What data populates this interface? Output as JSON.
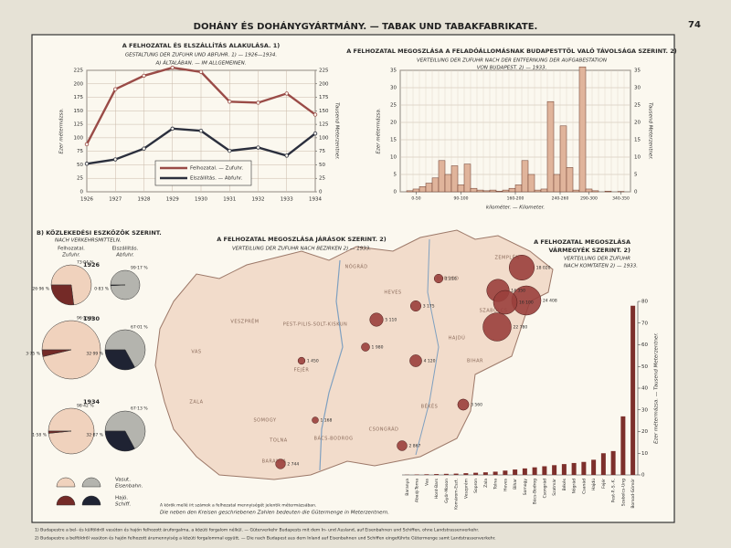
{
  "page": {
    "title": "DOHÁNY ÉS DOHÁNYGYÁRTMÁNY. — TABAK UND TABAKFABRIKATE.",
    "number": "74",
    "footnotes": [
      "1) Budapestre a bel- és külföldről vasúton és hajón felhozott áruforgalma, a közúti forgalom nélkül. — Güterverkehr Budapests mit dem In- und Ausland, auf Eisenbahnen und Schiffen, ohne Landstrassenverkehr.",
      "2) Budapestre a belföldről vasúton és hajón felhozott árumennyiség a közúti forgalommal együtt. — Die nach Budapest aus dem Inland auf Eisenbahnen und Schiffen eingeführte Gütermenge samt Landstrassenverkehr."
    ]
  },
  "chart_data": [
    {
      "type": "line",
      "title": "A FELHOZATAL ÉS ELSZÁLLÍTÁS ALAKULÁSA. 1)",
      "subtitle": "GESTALTUNG DER ZUFUHR UND ABFUHR. 1) — 1926—1934.",
      "subtitle2": "A) ÁLTALÁBAN. — IM ALLGEMEINEN.",
      "categories": [
        "1926",
        "1927",
        "1928",
        "1929",
        "1930",
        "1931",
        "1932",
        "1933",
        "1934"
      ],
      "ylabel": "Ezer métermázsa.",
      "y2label": "Tausend Meterzentner.",
      "ylim": [
        0,
        225
      ],
      "yticks": [
        0,
        25,
        50,
        75,
        100,
        125,
        150,
        175,
        200,
        225
      ],
      "y2lim": [
        0,
        225
      ],
      "y2ticks": [
        0,
        25,
        50,
        75,
        100,
        125,
        150,
        175,
        200,
        225
      ],
      "grid": true,
      "series": [
        {
          "name": "Felhozatal. — Zufuhr.",
          "color": "#9a4b47",
          "values": [
            88,
            190,
            215,
            230,
            222,
            167,
            165,
            182,
            143
          ]
        },
        {
          "name": "Elszállítás. — Abfuhr.",
          "color": "#2b2f3d",
          "values": [
            52,
            60,
            80,
            117,
            113,
            76,
            82,
            67,
            108
          ]
        }
      ]
    },
    {
      "type": "histogram",
      "title": "A FELHOZATAL MEGOSZLÁSA A FELADÓÁLLOMÁSNAK BUDAPESTTŐL VALÓ TÁVOLSÁGA SZERINT. 2)",
      "subtitle": "VERTEILUNG DER ZUFUHR NACH DER ENTFERNUNG DER AUFGABESTATION",
      "subtitle2": "VON BUDAPEST. 2) — 1933.",
      "bins": [
        0,
        10,
        20,
        30,
        40,
        50,
        60,
        70,
        80,
        90,
        100,
        110,
        120,
        130,
        140,
        150,
        160,
        170,
        180,
        190,
        200,
        210,
        220,
        230,
        240,
        250,
        260,
        270,
        280,
        290,
        300,
        310,
        320,
        330,
        340,
        350,
        360
      ],
      "counts": [
        0,
        0.3,
        0.8,
        1.5,
        2.5,
        4,
        9,
        5,
        7.5,
        2,
        8,
        1,
        0.5,
        0.3,
        0.5,
        0.2,
        0.5,
        1,
        2,
        9,
        5,
        0.5,
        0.8,
        26,
        5,
        19,
        7,
        0.5,
        36,
        0.8,
        0.3,
        0,
        0.2,
        0,
        0.1,
        0
      ],
      "color": "#e0b49b",
      "xlim": [
        0,
        360
      ],
      "xticks": [
        {
          "value": 25,
          "label": "0-50"
        },
        {
          "value": 95,
          "label": "90-100"
        },
        {
          "value": 180,
          "label": "160-200"
        },
        {
          "value": 250,
          "label": "240-260"
        },
        {
          "value": 295,
          "label": "290-300"
        },
        {
          "value": 345,
          "label": "340-350"
        }
      ],
      "xlabel": "kilométer. — Kilometer.",
      "ylabel": "Ezer métermázsa.",
      "y2label": "Tausend Meterzentner.",
      "ylim": [
        0,
        35
      ],
      "yticks": [
        0,
        5,
        10,
        15,
        20,
        25,
        30,
        35
      ],
      "grid": true
    },
    {
      "type": "pie",
      "title": "B) KÖZLEKEDÉSI ESZKÖZÖK SZERINT.",
      "subtitle": "NACH VERKEHRSMITTELN.",
      "columns": [
        "Felhozatal.",
        "Elszállítás."
      ],
      "columns_de": [
        "Zufuhr.",
        "Abfuhr."
      ],
      "series": [
        {
          "name": "Vasut.",
          "alt_name": "Eisenbahn.",
          "colors": [
            "#f0d2bd",
            "#b4b4ae"
          ]
        },
        {
          "name": "Hajó.",
          "alt_name": "Schiff.",
          "colors": [
            "#742a27",
            "#1f2333"
          ]
        }
      ],
      "years": [
        "1926",
        "1930",
        "1934"
      ],
      "values": [
        [
          [
            73.04,
            26.96
          ],
          [
            99.17,
            0.83
          ]
        ],
        [
          [
            96.25,
            3.75
          ],
          [
            67.01,
            32.99
          ]
        ],
        [
          [
            98.42,
            1.58
          ],
          [
            67.13,
            32.87
          ]
        ]
      ],
      "value_labels": [
        [
          [
            "73·04 %",
            "26·96 %"
          ],
          [
            "99·17 %",
            "0·83 %"
          ]
        ],
        [
          [
            "96·25 %",
            "3·75 %"
          ],
          [
            "67·01 %",
            "32·99 %"
          ]
        ],
        [
          [
            "98·42 %",
            "1·58 %"
          ],
          [
            "67·13 %",
            "32·87 %"
          ]
        ]
      ]
    },
    {
      "type": "bubble",
      "title": "A FELHOZATAL MEGOSZLÁSA JÁRÁSOK SZERINT. 2)",
      "subtitle": "VERTEILUNG DER ZUFUHR NACH BEZIRKEN 2) — 1933.",
      "note": "A körök mellé írt számok a felhozatal mennyiségét jelentik métermázsában.",
      "note_de": "Die neben den Kreisen geschriebenen Zahlen bedeuten die Gütermenge in Meterzentnern.",
      "color": "#9a3f3c",
      "values": [
        24408,
        18020,
        14350,
        16100,
        22780,
        3560,
        2867,
        5110,
        1168,
        3175,
        2744,
        1450,
        2210,
        1980,
        4120
      ],
      "value_labels": [
        "24 408",
        "18 020",
        "14 350",
        "16 100",
        "22 780",
        "3 560",
        "2 867",
        "5 110",
        "1 168",
        "3 175",
        "2 744",
        "1 450",
        "2 210",
        "1 980",
        "4 120"
      ],
      "regions": [
        "VAS",
        "ZALA",
        "VESZPRÉM",
        "FEJÉR",
        "SOMOGY",
        "BARANYA",
        "TOLNA",
        "PEST-PILIS-SOLT-KISKUN",
        "NÓGRÁD",
        "HEVES",
        "BORSOD",
        "ZEMPLÉN",
        "SZABOLCS",
        "HAJDÚ",
        "BIHAR",
        "BÉKÉS",
        "CSONGRÁD",
        "BÁCS-BODROG"
      ]
    },
    {
      "type": "bar",
      "title": "A FELHOZATAL MEGOSZLÁSA",
      "title2": "VÁRMEGYÉK SZERINT. 2)",
      "subtitle": "VERTEILUNG DER ZUFUHR",
      "subtitle2": "NACH KOMITATEN 2) — 1933.",
      "categories": [
        "Baranya",
        "Abaúj-Torna",
        "Vas",
        "Hont-Bars",
        "Győr-Moson",
        "Komárom-Eszt.",
        "Veszprém",
        "Sopron",
        "Zala",
        "Tolna",
        "Heves",
        "Bihar",
        "Somogy",
        "Bács-Bodrog",
        "Csongrád",
        "Szatmár",
        "Békés",
        "Nógrád",
        "Csanád",
        "Hajdú",
        "Fejér",
        "Pest-P.-S.-K.",
        "Szabolcs-Ung",
        "Borsod-Gömör"
      ],
      "values": [
        0.1,
        0.2,
        0.3,
        0.4,
        0.5,
        0.6,
        0.8,
        1,
        1.2,
        1.5,
        2,
        2.5,
        3,
        3.5,
        4,
        4.5,
        5,
        5.5,
        6,
        7,
        10,
        11,
        27,
        78
      ],
      "color": "#7d2f2b",
      "ylabel": "Ezer métermázsa. — Tausend Meterzentner.",
      "ylim": [
        0,
        80
      ],
      "yticks": [
        0,
        10,
        20,
        30,
        40,
        50,
        60,
        70,
        80
      ],
      "grid": false
    }
  ]
}
